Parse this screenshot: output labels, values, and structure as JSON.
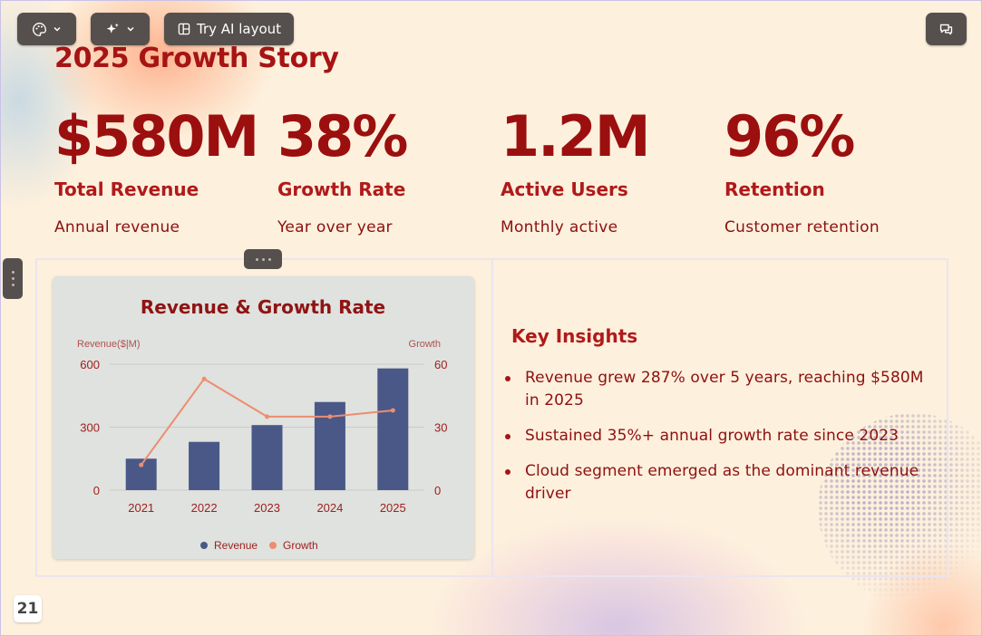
{
  "toolbar": {
    "theme_icon": "palette-icon",
    "ai_icon": "sparkles-icon",
    "layout_icon": "layout-icon",
    "try_ai_layout_label": "Try AI layout",
    "comment_icon": "comment-icon"
  },
  "slide": {
    "title": "2025 Growth Story",
    "page_number": "21",
    "stats": [
      {
        "value": "$580M",
        "label": "Total Revenue",
        "sub": "Annual revenue"
      },
      {
        "value": "38%",
        "label": "Growth Rate",
        "sub": "Year over year"
      },
      {
        "value": "1.2M",
        "label": "Active Users",
        "sub": "Monthly active"
      },
      {
        "value": "96%",
        "label": "Retention",
        "sub": "Customer retention"
      }
    ],
    "insights_title": "Key Insights",
    "insights": [
      "Revenue grew 287% over 5 years, reaching $580M in 2025",
      "Sustained 35%+ annual growth rate since 2023",
      "Cloud segment emerged as the dominant revenue driver"
    ]
  },
  "colors": {
    "accent": "#a61414",
    "bar": "#4a5888",
    "line": "#ec8d70"
  },
  "chart_data": {
    "type": "bar",
    "title": "Revenue & Growth Rate",
    "categories": [
      "2021",
      "2022",
      "2023",
      "2024",
      "2025"
    ],
    "ylabel_left": "Revenue($|M)",
    "ylabel_right": "Growth",
    "ylim_left": [
      0,
      600
    ],
    "ylim_right": [
      0,
      60
    ],
    "yticks_left": [
      0,
      300,
      600
    ],
    "yticks_right": [
      0,
      30,
      60
    ],
    "series": [
      {
        "name": "Revenue",
        "type": "bar",
        "axis": "left",
        "values": [
          150,
          230,
          310,
          420,
          580
        ]
      },
      {
        "name": "Growth",
        "type": "line",
        "axis": "right",
        "values": [
          12,
          53,
          35,
          35,
          38
        ]
      }
    ],
    "grid": true,
    "legend": "bottom"
  }
}
